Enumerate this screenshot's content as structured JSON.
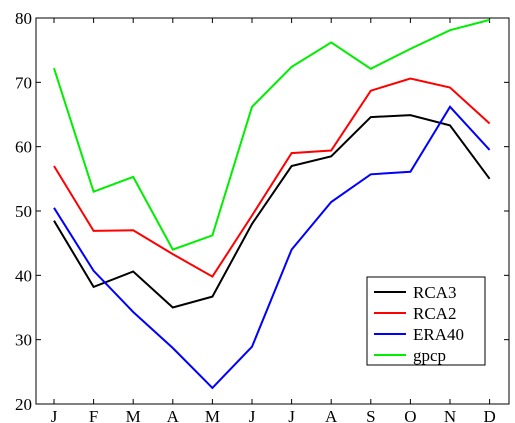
{
  "chart_data": {
    "type": "line",
    "categories": [
      "J",
      "F",
      "M",
      "A",
      "M",
      "J",
      "J",
      "A",
      "S",
      "O",
      "N",
      "D"
    ],
    "series": [
      {
        "name": "RCA3",
        "color": "#000000",
        "values": [
          48.5,
          38.2,
          40.6,
          35.0,
          36.7,
          48.0,
          57.0,
          58.5,
          64.6,
          64.9,
          63.3,
          55.0
        ]
      },
      {
        "name": "RCA2",
        "color": "#ff0000",
        "values": [
          57.0,
          46.9,
          47.0,
          43.3,
          39.8,
          49.3,
          59.0,
          59.4,
          68.7,
          70.6,
          69.2,
          63.6
        ]
      },
      {
        "name": "ERA40",
        "color": "#0000ff",
        "values": [
          50.5,
          40.7,
          34.3,
          28.7,
          22.5,
          28.9,
          44.0,
          51.4,
          55.7,
          56.1,
          66.2,
          59.5
        ]
      },
      {
        "name": "gpcp",
        "color": "#00ee00",
        "values": [
          72.2,
          53.0,
          55.3,
          44.0,
          46.2,
          66.2,
          72.4,
          76.2,
          72.1,
          75.2,
          78.1,
          79.7
        ]
      }
    ],
    "ylim": [
      20,
      80
    ],
    "yticks": [
      "20",
      "30",
      "40",
      "50",
      "60",
      "70",
      "80"
    ],
    "xlabel": "",
    "ylabel": "",
    "title": "",
    "grid": false,
    "legend_position": "lower-right"
  }
}
